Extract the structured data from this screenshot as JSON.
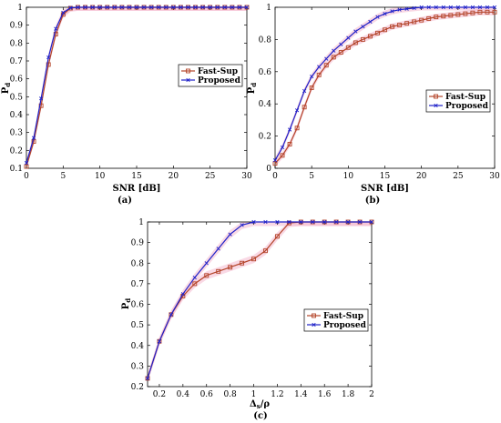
{
  "colors": {
    "fast_sup": "#b4452a",
    "proposed": "#1f22c9",
    "band": "#f4b9d0"
  },
  "chart_data": [
    {
      "type": "line",
      "panel_label": "(a)",
      "xlabel": "SNR [dB]",
      "ylabel": "P",
      "ylabel_sub": "d",
      "xlim": [
        0,
        30
      ],
      "ylim": [
        0.1,
        1
      ],
      "xticks": [
        0,
        5,
        10,
        15,
        20,
        25,
        30
      ],
      "yticks": [
        0.1,
        0.2,
        0.3,
        0.4,
        0.5,
        0.6,
        0.7,
        0.8,
        0.9,
        1
      ],
      "grid": false,
      "legend": "right",
      "series": [
        {
          "name": "Fast-Sup",
          "marker": "square",
          "x": [
            0,
            1,
            2,
            3,
            4,
            5,
            6,
            7,
            8,
            9,
            10,
            11,
            12,
            13,
            14,
            15,
            16,
            17,
            18,
            19,
            20,
            21,
            22,
            23,
            24,
            25,
            26,
            27,
            28,
            29,
            30
          ],
          "y": [
            0.11,
            0.25,
            0.45,
            0.68,
            0.85,
            0.96,
            0.995,
            1,
            1,
            1,
            1,
            1,
            1,
            1,
            1,
            1,
            1,
            1,
            1,
            1,
            1,
            1,
            1,
            1,
            1,
            1,
            1,
            1,
            1,
            1,
            1
          ]
        },
        {
          "name": "Proposed",
          "marker": "x",
          "x": [
            0,
            1,
            2,
            3,
            4,
            5,
            6,
            7,
            8,
            9,
            10,
            11,
            12,
            13,
            14,
            15,
            16,
            17,
            18,
            19,
            20,
            21,
            22,
            23,
            24,
            25,
            26,
            27,
            28,
            29,
            30
          ],
          "y": [
            0.13,
            0.27,
            0.49,
            0.72,
            0.88,
            0.97,
            0.997,
            1,
            1,
            1,
            1,
            1,
            1,
            1,
            1,
            1,
            1,
            1,
            1,
            1,
            1,
            1,
            1,
            1,
            1,
            1,
            1,
            1,
            1,
            1,
            1
          ]
        }
      ]
    },
    {
      "type": "line",
      "panel_label": "(b)",
      "xlabel": "SNR [dB]",
      "ylabel": "P",
      "ylabel_sub": "d",
      "xlim": [
        0,
        30
      ],
      "ylim": [
        0,
        1
      ],
      "xticks": [
        0,
        5,
        10,
        15,
        20,
        25,
        30
      ],
      "yticks": [
        0,
        0.2,
        0.4,
        0.6,
        0.8,
        1
      ],
      "grid": false,
      "legend": "lower-right",
      "series": [
        {
          "name": "Fast-Sup",
          "marker": "square",
          "x": [
            0,
            1,
            2,
            3,
            4,
            5,
            6,
            7,
            8,
            9,
            10,
            11,
            12,
            13,
            14,
            15,
            16,
            17,
            18,
            19,
            20,
            21,
            22,
            23,
            24,
            25,
            26,
            27,
            28,
            29,
            30
          ],
          "y": [
            0.03,
            0.08,
            0.15,
            0.25,
            0.38,
            0.5,
            0.58,
            0.64,
            0.69,
            0.72,
            0.75,
            0.78,
            0.8,
            0.82,
            0.84,
            0.86,
            0.88,
            0.89,
            0.9,
            0.91,
            0.92,
            0.93,
            0.94,
            0.945,
            0.95,
            0.955,
            0.96,
            0.965,
            0.97,
            0.97,
            0.97
          ]
        },
        {
          "name": "Proposed",
          "marker": "x",
          "x": [
            0,
            1,
            2,
            3,
            4,
            5,
            6,
            7,
            8,
            9,
            10,
            11,
            12,
            13,
            14,
            15,
            16,
            17,
            18,
            19,
            20,
            21,
            22,
            23,
            24,
            25,
            26,
            27,
            28,
            29,
            30
          ],
          "y": [
            0.05,
            0.13,
            0.24,
            0.36,
            0.48,
            0.57,
            0.63,
            0.68,
            0.73,
            0.77,
            0.81,
            0.85,
            0.88,
            0.91,
            0.94,
            0.96,
            0.975,
            0.985,
            0.99,
            0.995,
            1,
            1,
            1,
            1,
            1,
            1,
            1,
            1,
            1,
            1,
            1
          ]
        }
      ]
    },
    {
      "type": "line",
      "panel_label": "(c)",
      "xlabel": "Δ",
      "xlabel_sub": "s",
      "xlabel_tail": "/ρ",
      "ylabel": "P",
      "ylabel_sub": "d",
      "xlim": [
        0.1,
        2
      ],
      "ylim": [
        0.2,
        1
      ],
      "xticks": [
        0.2,
        0.4,
        0.6,
        0.8,
        1,
        1.2,
        1.4,
        1.6,
        1.8,
        2
      ],
      "yticks": [
        0.2,
        0.3,
        0.4,
        0.5,
        0.6,
        0.7,
        0.8,
        0.9,
        1
      ],
      "grid": false,
      "legend": "lower-right",
      "series": [
        {
          "name": "Fast-Sup",
          "marker": "square",
          "x": [
            0.1,
            0.2,
            0.3,
            0.4,
            0.5,
            0.6,
            0.7,
            0.8,
            0.9,
            1.0,
            1.1,
            1.2,
            1.3,
            1.4,
            1.5,
            1.6,
            1.7,
            1.8,
            1.9,
            2.0
          ],
          "y": [
            0.24,
            0.42,
            0.55,
            0.64,
            0.7,
            0.74,
            0.76,
            0.78,
            0.8,
            0.82,
            0.86,
            0.93,
            0.995,
            1,
            1,
            1,
            1,
            1,
            1,
            1
          ]
        },
        {
          "name": "Proposed",
          "marker": "x",
          "x": [
            0.1,
            0.2,
            0.3,
            0.4,
            0.5,
            0.6,
            0.7,
            0.8,
            0.9,
            1.0,
            1.1,
            1.2,
            1.3,
            1.4,
            1.5,
            1.6,
            1.7,
            1.8,
            1.9,
            2.0
          ],
          "y": [
            0.24,
            0.42,
            0.55,
            0.65,
            0.73,
            0.8,
            0.87,
            0.94,
            0.985,
            1,
            1,
            1,
            1,
            1,
            1,
            1,
            1,
            1,
            1,
            1
          ]
        }
      ]
    }
  ]
}
